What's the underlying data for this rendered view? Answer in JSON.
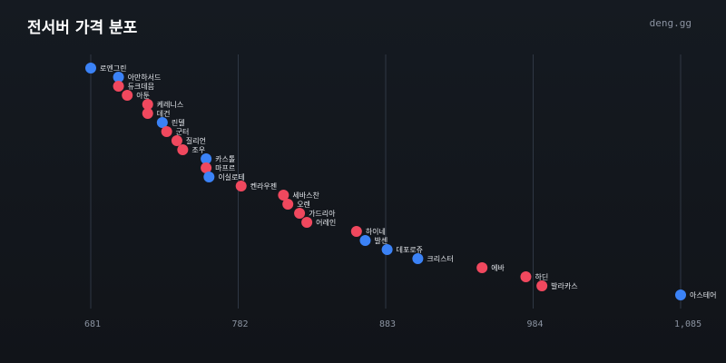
{
  "header": {
    "title": "전서버 가격 분포",
    "brand": "deng.gg"
  },
  "colors": {
    "blue": "#3b82f6",
    "red": "#f0485e",
    "grid": "#2f3744",
    "background": "#13171d"
  },
  "chart_data": {
    "type": "scatter",
    "title": "전서버 가격 분포",
    "xlabel": "",
    "ylabel": "",
    "xlim": [
      681,
      1085
    ],
    "x_ticks": [
      "681",
      "782",
      "883",
      "984",
      "1,085"
    ],
    "x_tick_values": [
      681,
      782,
      883,
      984,
      1085
    ],
    "grid": true,
    "points": [
      {
        "label": "로엔그린",
        "value": 681,
        "color": "blue"
      },
      {
        "label": "아만하서드",
        "value": 700,
        "color": "blue"
      },
      {
        "label": "듀크데믐",
        "value": 700,
        "color": "red"
      },
      {
        "label": "아툰",
        "value": 706,
        "color": "red"
      },
      {
        "label": "케레니스",
        "value": 720,
        "color": "red"
      },
      {
        "label": "데건",
        "value": 720,
        "color": "red"
      },
      {
        "label": "린델",
        "value": 730,
        "color": "blue"
      },
      {
        "label": "군터",
        "value": 733,
        "color": "red"
      },
      {
        "label": "질리언",
        "value": 740,
        "color": "red"
      },
      {
        "label": "조우",
        "value": 744,
        "color": "red"
      },
      {
        "label": "카스톨",
        "value": 760,
        "color": "blue"
      },
      {
        "label": "마프르",
        "value": 760,
        "color": "red"
      },
      {
        "label": "이실로테",
        "value": 762,
        "color": "blue"
      },
      {
        "label": "켄라우젠",
        "value": 784,
        "color": "red"
      },
      {
        "label": "세바스찬",
        "value": 813,
        "color": "red"
      },
      {
        "label": "오렌",
        "value": 816,
        "color": "red"
      },
      {
        "label": "가드리아",
        "value": 824,
        "color": "red"
      },
      {
        "label": "어레인",
        "value": 829,
        "color": "red"
      },
      {
        "label": "하이네",
        "value": 863,
        "color": "red"
      },
      {
        "label": "발센",
        "value": 869,
        "color": "blue"
      },
      {
        "label": "데포로쥬",
        "value": 884,
        "color": "blue"
      },
      {
        "label": "크리스터",
        "value": 905,
        "color": "blue"
      },
      {
        "label": "에바",
        "value": 949,
        "color": "red"
      },
      {
        "label": "하딘",
        "value": 979,
        "color": "red"
      },
      {
        "label": "발라카스",
        "value": 990,
        "color": "red"
      },
      {
        "label": "아스테어",
        "value": 1085,
        "color": "blue"
      }
    ]
  }
}
